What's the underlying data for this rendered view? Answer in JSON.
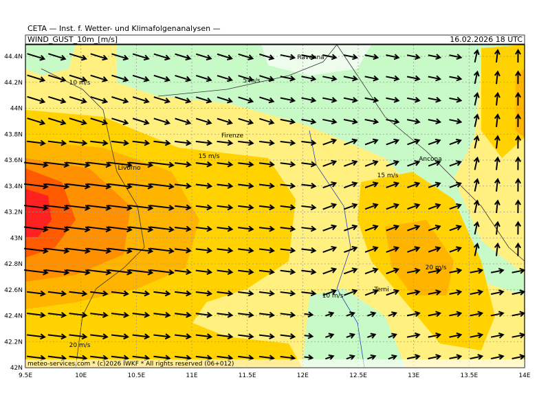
{
  "header": {
    "line1": "CETA — Inst. f. Wetter- und Klimafolgenanalysen —",
    "param": "WIND_GUST_10m_[m/s]",
    "datetime": "16.02.2026 18 UTC"
  },
  "map": {
    "x_labels": [
      "9.5E",
      "10E",
      "10.5E",
      "11E",
      "11.5E",
      "12E",
      "12.5E",
      "13E",
      "13.5E",
      "14E"
    ],
    "y_labels": [
      "42N",
      "42.2N",
      "42.4N",
      "42.6N",
      "42.8N",
      "43N",
      "43.2N",
      "43.4N",
      "43.6N",
      "43.8N",
      "44N",
      "44.2N",
      "44.4N"
    ],
    "cities": [
      "Ravenna",
      "Firenze",
      "Livorno",
      "Ancona",
      "Terni"
    ],
    "contour_labels": [
      "10 m/s",
      "5 m/s",
      "15 m/s",
      "15 m/s",
      "20 m/s",
      "10 m/s",
      "20 m/s"
    ],
    "footer": "meteo-services.com * (c)2026 IWKF * All rights reserved (06+012)"
  }
}
